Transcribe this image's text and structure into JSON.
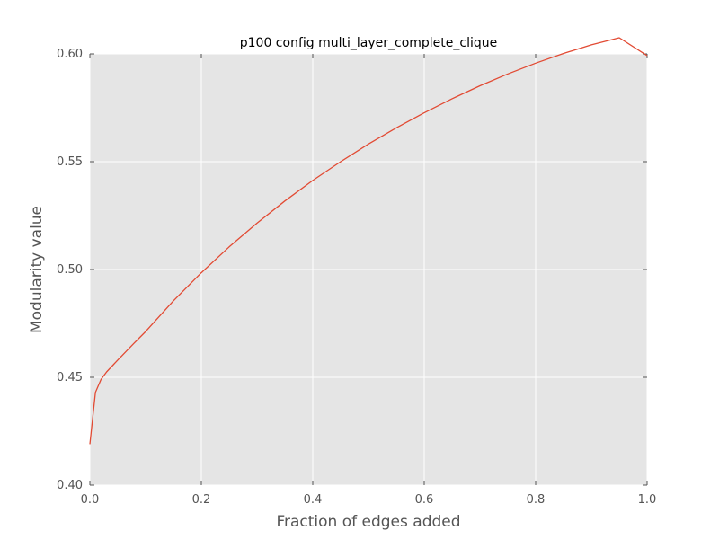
{
  "chart_data": {
    "type": "line",
    "title": "p100 config multi_layer_complete_clique",
    "xlabel": "Fraction of edges added",
    "ylabel": "Modularity value",
    "xlim": [
      0.0,
      1.0
    ],
    "ylim": [
      0.4,
      0.6
    ],
    "xticks": [
      "0.0",
      "0.2",
      "0.4",
      "0.6",
      "0.8",
      "1.0"
    ],
    "yticks": [
      "0.40",
      "0.45",
      "0.50",
      "0.55",
      "0.60"
    ],
    "grid": true,
    "background": "#e5e5e5",
    "series": [
      {
        "color": "#e24a33",
        "x": [
          0.0,
          0.01,
          0.02,
          0.03,
          0.05,
          0.08,
          0.1,
          0.15,
          0.2,
          0.25,
          0.3,
          0.35,
          0.4,
          0.45,
          0.5,
          0.55,
          0.6,
          0.65,
          0.7,
          0.75,
          0.8,
          0.85,
          0.9,
          0.95,
          1.0
        ],
        "y": [
          0.419,
          0.443,
          0.449,
          0.4525,
          0.458,
          0.466,
          0.4712,
          0.4855,
          0.4985,
          0.5105,
          0.5215,
          0.5318,
          0.5413,
          0.55,
          0.5582,
          0.5657,
          0.5727,
          0.5792,
          0.5852,
          0.5907,
          0.5957,
          0.6002,
          0.6042,
          0.6075,
          0.5992
        ]
      }
    ]
  }
}
